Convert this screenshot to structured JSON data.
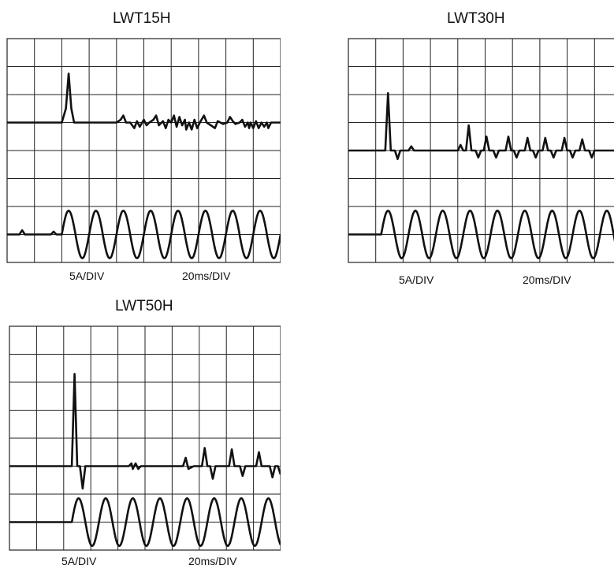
{
  "chart_data": [
    {
      "type": "line",
      "title": "LWT15H",
      "current_scale": "5A/DIV",
      "time_scale": "20ms/DIV",
      "grid": true,
      "divisions": {
        "x": 10,
        "y": 8
      },
      "series": [
        {
          "trace": "inrush-current",
          "points": [
            [
              0,
              5.0
            ],
            [
              2.0,
              5.0
            ],
            [
              2.15,
              5.5
            ],
            [
              2.25,
              6.75
            ],
            [
              2.35,
              5.5
            ],
            [
              2.45,
              5.0
            ],
            [
              4.0,
              5.0
            ],
            [
              4.15,
              5.1
            ],
            [
              4.25,
              5.25
            ],
            [
              4.35,
              5.0
            ],
            [
              4.5,
              5.0
            ],
            [
              4.65,
              4.8
            ],
            [
              4.75,
              5.05
            ],
            [
              4.85,
              4.85
            ],
            [
              5.0,
              5.1
            ],
            [
              5.1,
              4.9
            ],
            [
              5.2,
              5.0
            ],
            [
              5.35,
              5.1
            ],
            [
              5.45,
              5.25
            ],
            [
              5.55,
              4.9
            ],
            [
              5.7,
              5.05
            ],
            [
              5.8,
              4.8
            ],
            [
              5.9,
              5.1
            ],
            [
              6.0,
              5.0
            ],
            [
              6.1,
              5.25
            ],
            [
              6.2,
              4.85
            ],
            [
              6.3,
              5.2
            ],
            [
              6.4,
              4.9
            ],
            [
              6.5,
              5.1
            ],
            [
              6.55,
              4.75
            ],
            [
              6.65,
              5.0
            ],
            [
              6.75,
              4.75
            ],
            [
              6.85,
              5.1
            ],
            [
              6.95,
              4.8
            ],
            [
              7.05,
              5.0
            ],
            [
              7.2,
              5.25
            ],
            [
              7.3,
              5.0
            ],
            [
              7.45,
              4.9
            ],
            [
              7.6,
              4.8
            ],
            [
              7.7,
              5.05
            ],
            [
              7.8,
              5.0
            ],
            [
              7.9,
              4.95
            ],
            [
              8.05,
              5.0
            ],
            [
              8.15,
              5.2
            ],
            [
              8.25,
              5.05
            ],
            [
              8.35,
              4.95
            ],
            [
              8.5,
              5.0
            ],
            [
              8.6,
              5.1
            ],
            [
              8.7,
              4.85
            ],
            [
              8.8,
              5.0
            ],
            [
              8.85,
              4.8
            ],
            [
              8.9,
              5.0
            ],
            [
              9.0,
              4.8
            ],
            [
              9.1,
              5.05
            ],
            [
              9.2,
              4.8
            ],
            [
              9.3,
              5.0
            ],
            [
              9.4,
              4.85
            ],
            [
              9.5,
              5.0
            ],
            [
              9.55,
              4.8
            ],
            [
              9.65,
              5.0
            ],
            [
              10.0,
              5.0
            ]
          ]
        },
        {
          "trace": "supply-voltage",
          "pre": [
            [
              0,
              1.0
            ],
            [
              0.45,
              1.0
            ],
            [
              0.55,
              1.15
            ],
            [
              0.65,
              1.0
            ],
            [
              1.6,
              1.0
            ],
            [
              1.7,
              1.1
            ],
            [
              1.8,
              1.0
            ],
            [
              2.0,
              1.0
            ]
          ],
          "sine": {
            "start": 2.0,
            "end": 10.0,
            "cycles": 8,
            "center": 1.0,
            "amplitude": 0.85
          }
        }
      ]
    },
    {
      "type": "line",
      "title": "LWT30H",
      "current_scale": "5A/DIV",
      "time_scale": "20ms/DIV",
      "grid": true,
      "divisions": {
        "x": 10,
        "y": 8
      },
      "series": [
        {
          "trace": "inrush-current",
          "points": [
            [
              0,
              4.0
            ],
            [
              1.35,
              4.0
            ],
            [
              1.45,
              6.05
            ],
            [
              1.55,
              4.0
            ],
            [
              1.7,
              4.0
            ],
            [
              1.8,
              3.7
            ],
            [
              1.9,
              4.0
            ],
            [
              2.2,
              4.0
            ],
            [
              2.3,
              4.15
            ],
            [
              2.4,
              4.0
            ],
            [
              4.0,
              4.0
            ],
            [
              4.1,
              4.2
            ],
            [
              4.2,
              4.0
            ],
            [
              4.3,
              4.0
            ],
            [
              4.4,
              4.9
            ],
            [
              4.5,
              4.0
            ],
            [
              4.65,
              4.0
            ],
            [
              4.75,
              3.75
            ],
            [
              4.85,
              4.0
            ],
            [
              4.95,
              4.0
            ],
            [
              5.05,
              4.5
            ],
            [
              5.15,
              4.0
            ],
            [
              5.3,
              4.0
            ],
            [
              5.4,
              3.75
            ],
            [
              5.5,
              4.0
            ],
            [
              5.75,
              4.0
            ],
            [
              5.85,
              4.5
            ],
            [
              5.95,
              4.0
            ],
            [
              6.05,
              4.0
            ],
            [
              6.15,
              3.75
            ],
            [
              6.25,
              4.0
            ],
            [
              6.45,
              4.0
            ],
            [
              6.55,
              4.45
            ],
            [
              6.65,
              4.0
            ],
            [
              6.75,
              4.0
            ],
            [
              6.85,
              3.75
            ],
            [
              6.95,
              4.0
            ],
            [
              7.1,
              4.0
            ],
            [
              7.2,
              4.45
            ],
            [
              7.3,
              4.0
            ],
            [
              7.4,
              4.0
            ],
            [
              7.5,
              3.75
            ],
            [
              7.6,
              4.0
            ],
            [
              7.8,
              4.0
            ],
            [
              7.9,
              4.45
            ],
            [
              8.0,
              4.0
            ],
            [
              8.1,
              4.0
            ],
            [
              8.2,
              3.75
            ],
            [
              8.3,
              4.0
            ],
            [
              8.45,
              4.0
            ],
            [
              8.55,
              4.4
            ],
            [
              8.65,
              4.0
            ],
            [
              8.8,
              4.0
            ],
            [
              8.9,
              3.75
            ],
            [
              9.0,
              4.0
            ],
            [
              10.0,
              4.0
            ]
          ]
        },
        {
          "trace": "supply-voltage",
          "pre": [
            [
              0,
              1.0
            ],
            [
              1.2,
              1.0
            ]
          ],
          "sine": {
            "start": 1.2,
            "end": 10.0,
            "cycles": 8.8,
            "center": 1.0,
            "amplitude": 0.85
          }
        }
      ]
    },
    {
      "type": "line",
      "title": "LWT50H",
      "current_scale": "5A/DIV",
      "time_scale": "20ms/DIV",
      "grid": true,
      "divisions": {
        "x": 10,
        "y": 8
      },
      "series": [
        {
          "trace": "inrush-current",
          "points": [
            [
              0,
              3.0
            ],
            [
              2.3,
              3.0
            ],
            [
              2.4,
              6.3
            ],
            [
              2.5,
              3.0
            ],
            [
              2.6,
              3.0
            ],
            [
              2.7,
              2.2
            ],
            [
              2.8,
              3.0
            ],
            [
              4.4,
              3.0
            ],
            [
              4.5,
              3.1
            ],
            [
              4.55,
              2.9
            ],
            [
              4.65,
              3.1
            ],
            [
              4.75,
              2.9
            ],
            [
              4.85,
              3.0
            ],
            [
              6.4,
              3.0
            ],
            [
              6.5,
              3.3
            ],
            [
              6.6,
              2.9
            ],
            [
              6.8,
              3.0
            ],
            [
              7.1,
              3.0
            ],
            [
              7.2,
              3.65
            ],
            [
              7.3,
              3.0
            ],
            [
              7.4,
              3.0
            ],
            [
              7.5,
              2.55
            ],
            [
              7.6,
              3.0
            ],
            [
              8.1,
              3.0
            ],
            [
              8.2,
              3.6
            ],
            [
              8.3,
              3.0
            ],
            [
              8.5,
              3.0
            ],
            [
              8.6,
              2.65
            ],
            [
              8.7,
              3.0
            ],
            [
              9.1,
              3.0
            ],
            [
              9.2,
              3.5
            ],
            [
              9.3,
              3.0
            ],
            [
              9.6,
              3.0
            ],
            [
              9.7,
              2.6
            ],
            [
              9.8,
              3.0
            ],
            [
              9.9,
              3.0
            ],
            [
              10.0,
              2.7
            ]
          ]
        },
        {
          "trace": "supply-voltage",
          "pre": [
            [
              0,
              1.0
            ],
            [
              2.3,
              1.0
            ]
          ],
          "sine": {
            "start": 2.3,
            "end": 10.0,
            "cycles": 7.7,
            "center": 1.0,
            "amplitude": 0.85
          }
        }
      ]
    }
  ]
}
